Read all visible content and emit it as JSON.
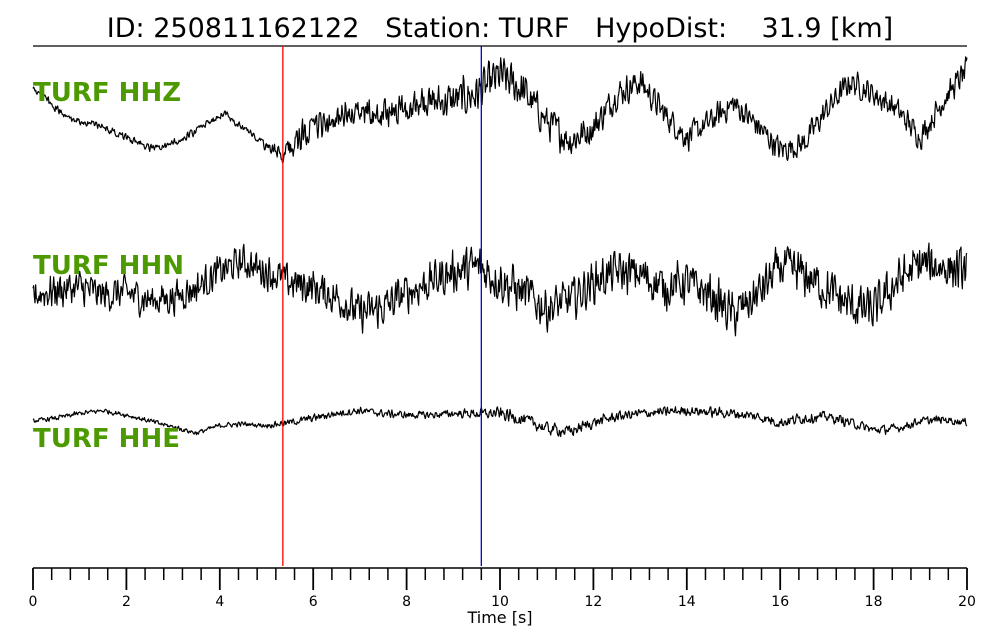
{
  "header": {
    "id_label": "ID:",
    "id_value": "250811162122",
    "station_label": "Station:",
    "station_value": "TURF",
    "hypodist_label": "HypoDist:",
    "hypodist_value": "31.9",
    "hypodist_unit": "[km]"
  },
  "colors": {
    "trace": "#000000",
    "label": "#4c9a00",
    "p_pick": "#ff0000",
    "s_pick": "#0000cc"
  },
  "chart_data": {
    "type": "line",
    "title": "",
    "xlabel": "Time [s]",
    "ylabel": "",
    "xlim": [
      0,
      20
    ],
    "x_ticks": [
      0,
      2,
      4,
      6,
      8,
      10,
      12,
      14,
      16,
      18,
      20
    ],
    "tick_labels": [
      "0",
      "2",
      "4",
      "6",
      "8",
      "10",
      "12",
      "14",
      "16",
      "18",
      "20"
    ],
    "minor_tick_step": 0.4,
    "grid": false,
    "picks": [
      {
        "color": "#ff0000",
        "time": 5.35
      },
      {
        "color": "#0000cc",
        "time": 9.6
      }
    ],
    "series": [
      {
        "name": "TURF HHZ",
        "times": [
          0,
          0.3,
          0.8,
          1.4,
          2.0,
          2.6,
          3.1,
          3.6,
          4.1,
          4.6,
          5.0,
          5.35,
          5.7,
          6.2,
          6.8,
          7.4,
          8.0,
          8.5,
          9.0,
          9.5,
          10.0,
          10.5,
          11.0,
          11.5,
          12.0,
          12.5,
          13.0,
          13.5,
          14.0,
          14.5,
          15.0,
          15.5,
          16.0,
          16.5,
          17.0,
          17.5,
          18.0,
          18.5,
          19.0,
          19.5,
          20.0
        ],
        "amplitudes": [
          0.55,
          0.35,
          0.05,
          -0.05,
          -0.25,
          -0.45,
          -0.3,
          -0.1,
          0.15,
          -0.15,
          -0.4,
          -0.55,
          -0.25,
          -0.05,
          0.15,
          0.1,
          0.25,
          0.3,
          0.35,
          0.45,
          0.75,
          0.5,
          0.0,
          -0.3,
          -0.1,
          0.45,
          0.65,
          0.15,
          -0.25,
          0.0,
          0.3,
          -0.05,
          -0.45,
          -0.35,
          0.2,
          0.65,
          0.45,
          0.2,
          -0.25,
          0.35,
          0.85
        ],
        "noise": [
          0.08,
          0.08,
          0.08,
          0.08,
          0.08,
          0.08,
          0.08,
          0.08,
          0.08,
          0.08,
          0.08,
          0.25,
          0.3,
          0.3,
          0.3,
          0.3,
          0.3,
          0.35,
          0.38,
          0.4,
          0.4,
          0.38,
          0.35,
          0.32,
          0.3,
          0.28,
          0.28,
          0.26,
          0.26,
          0.26,
          0.25,
          0.25,
          0.25,
          0.25,
          0.25,
          0.24,
          0.24,
          0.24,
          0.24,
          0.24,
          0.24
        ]
      },
      {
        "name": "TURF HHN",
        "times": [
          0,
          0.5,
          1.0,
          1.5,
          2.0,
          2.5,
          3.0,
          3.5,
          4.0,
          4.5,
          5.0,
          5.5,
          6.0,
          6.5,
          7.0,
          7.5,
          8.0,
          8.5,
          9.0,
          9.5,
          10.0,
          10.5,
          11.0,
          11.5,
          12.0,
          12.5,
          13.0,
          13.5,
          14.0,
          14.5,
          15.0,
          15.5,
          16.0,
          16.5,
          17.0,
          17.5,
          18.0,
          18.5,
          19.0,
          19.5,
          20.0
        ],
        "amplitudes": [
          -0.1,
          0.0,
          0.05,
          -0.1,
          -0.05,
          -0.2,
          -0.15,
          0.05,
          0.35,
          0.55,
          0.35,
          0.15,
          0.05,
          -0.15,
          -0.45,
          -0.35,
          -0.05,
          0.15,
          0.35,
          0.45,
          0.2,
          -0.05,
          -0.35,
          -0.2,
          0.15,
          0.35,
          0.3,
          0.05,
          0.15,
          -0.1,
          -0.5,
          -0.1,
          0.45,
          0.3,
          0.0,
          -0.3,
          -0.4,
          0.15,
          0.5,
          0.45,
          0.35
        ],
        "noise": [
          0.42,
          0.42,
          0.42,
          0.4,
          0.4,
          0.4,
          0.4,
          0.38,
          0.38,
          0.38,
          0.4,
          0.42,
          0.42,
          0.42,
          0.45,
          0.45,
          0.45,
          0.45,
          0.48,
          0.52,
          0.55,
          0.52,
          0.5,
          0.48,
          0.48,
          0.48,
          0.5,
          0.5,
          0.5,
          0.5,
          0.5,
          0.5,
          0.52,
          0.52,
          0.52,
          0.52,
          0.52,
          0.5,
          0.5,
          0.5,
          0.5
        ]
      },
      {
        "name": "TURF HHE",
        "times": [
          0,
          0.5,
          1.0,
          1.5,
          2.0,
          2.5,
          3.0,
          3.5,
          4.0,
          4.5,
          5.0,
          5.5,
          6.0,
          6.5,
          7.0,
          7.5,
          8.0,
          8.5,
          9.0,
          9.5,
          10.0,
          10.5,
          11.0,
          11.5,
          12.0,
          12.5,
          13.0,
          13.5,
          14.0,
          14.5,
          15.0,
          15.5,
          16.0,
          16.5,
          17.0,
          17.5,
          18.0,
          18.5,
          19.0,
          19.5,
          20.0
        ],
        "amplitudes": [
          0.1,
          0.2,
          0.35,
          0.45,
          0.3,
          0.1,
          -0.1,
          -0.3,
          -0.05,
          0.0,
          -0.05,
          0.05,
          0.2,
          0.35,
          0.45,
          0.35,
          0.3,
          0.3,
          0.35,
          0.35,
          0.35,
          0.15,
          -0.15,
          -0.25,
          0.05,
          0.25,
          0.35,
          0.4,
          0.45,
          0.4,
          0.35,
          0.25,
          0.05,
          0.2,
          0.25,
          0.05,
          -0.2,
          -0.15,
          0.1,
          0.15,
          0.05
        ],
        "noise": [
          0.08,
          0.1,
          0.1,
          0.1,
          0.1,
          0.1,
          0.1,
          0.1,
          0.1,
          0.1,
          0.1,
          0.14,
          0.15,
          0.15,
          0.15,
          0.15,
          0.15,
          0.15,
          0.15,
          0.2,
          0.25,
          0.26,
          0.26,
          0.24,
          0.22,
          0.2,
          0.2,
          0.2,
          0.2,
          0.2,
          0.2,
          0.2,
          0.24,
          0.22,
          0.2,
          0.2,
          0.18,
          0.18,
          0.16,
          0.16,
          0.16
        ]
      }
    ]
  }
}
